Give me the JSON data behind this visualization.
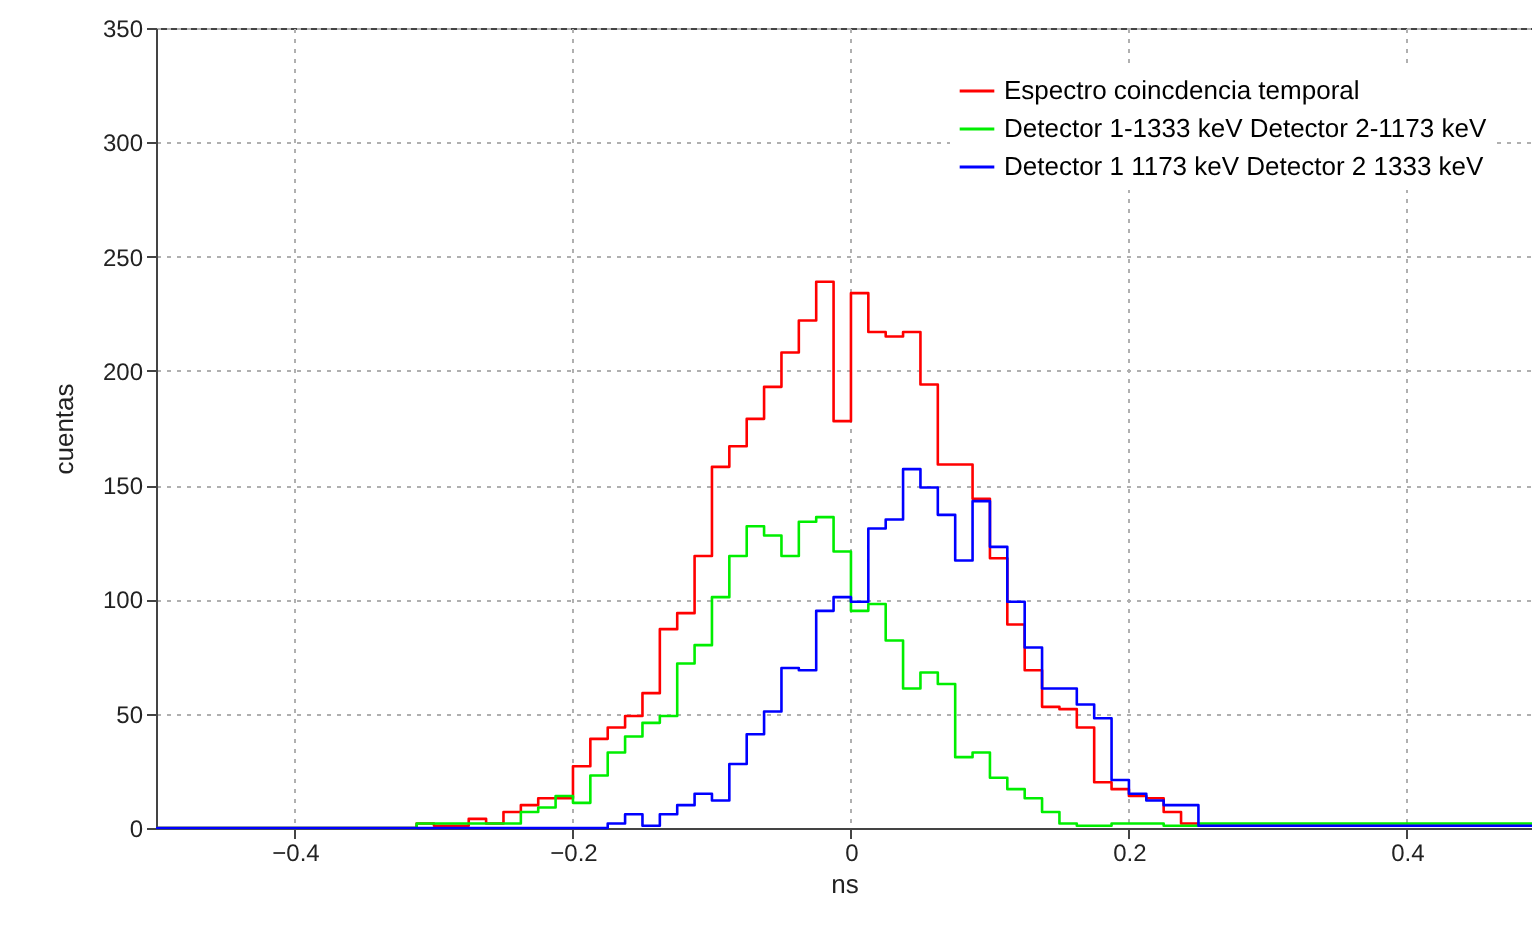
{
  "chart_data": {
    "type": "histogram",
    "xlabel": "ns",
    "ylabel": "cuentas",
    "bins": [
      -0.5,
      -0.3125,
      -0.3,
      -0.2875,
      -0.275,
      -0.2625,
      -0.25,
      -0.2375,
      -0.225,
      -0.2125,
      -0.2,
      -0.1875,
      -0.175,
      -0.1625,
      -0.15,
      -0.1375,
      -0.125,
      -0.1125,
      -0.1,
      -0.0875,
      -0.075,
      -0.0625,
      -0.05,
      -0.0375,
      -0.025,
      -0.0125,
      0,
      0.0125,
      0.025,
      0.0375,
      0.05,
      0.0625,
      0.075,
      0.0875,
      0.1,
      0.1125,
      0.125,
      0.1375,
      0.15,
      0.1625,
      0.175,
      0.1875,
      0.2,
      0.2125,
      0.225,
      0.2375,
      0.25,
      0.49
    ],
    "series": [
      {
        "name": "Espectro coincdencia temporal",
        "color": "#ff0000",
        "values": [
          0,
          2,
          1,
          1,
          4,
          2,
          7,
          10,
          13,
          13,
          27,
          39,
          44,
          49,
          59,
          87,
          94,
          119,
          158,
          167,
          179,
          193,
          208,
          222,
          239,
          178,
          234,
          217,
          215,
          217,
          194,
          159,
          159,
          144,
          118,
          89,
          69,
          53,
          52,
          44,
          20,
          17,
          14,
          13,
          7,
          2,
          1
        ]
      },
      {
        "name": "Detector 1-1333 keV Detector 2-1173 keV",
        "color": "#00ee00",
        "values": [
          0,
          2,
          2,
          2,
          2,
          2,
          2,
          7,
          9,
          14,
          11,
          23,
          33,
          40,
          46,
          49,
          72,
          80,
          101,
          119,
          132,
          128,
          119,
          134,
          136,
          121,
          95,
          98,
          82,
          61,
          68,
          63,
          31,
          33,
          22,
          17,
          13,
          7,
          2,
          1,
          1,
          2,
          2,
          2,
          1,
          1,
          2
        ]
      },
      {
        "name": "Detector 1 1173 keV Detector 2 1333 keV",
        "color": "#0000ff",
        "values": [
          0,
          0,
          0,
          0,
          0,
          0,
          0,
          0,
          0,
          0,
          0,
          0,
          2,
          6,
          1,
          6,
          10,
          15,
          12,
          28,
          41,
          51,
          70,
          69,
          95,
          101,
          99,
          131,
          135,
          157,
          149,
          137,
          117,
          143,
          123,
          99,
          79,
          61,
          61,
          54,
          48,
          21,
          15,
          12,
          10,
          10,
          1
        ]
      }
    ],
    "xlim": [
      -0.5,
      0.49
    ],
    "xticks": [
      -0.4,
      -0.2,
      0,
      0.2,
      0.4
    ],
    "ylim": [
      0,
      350
    ],
    "yticks": [
      0,
      50,
      100,
      150,
      200,
      250,
      300,
      350
    ],
    "grid": true,
    "legend": "top right"
  }
}
